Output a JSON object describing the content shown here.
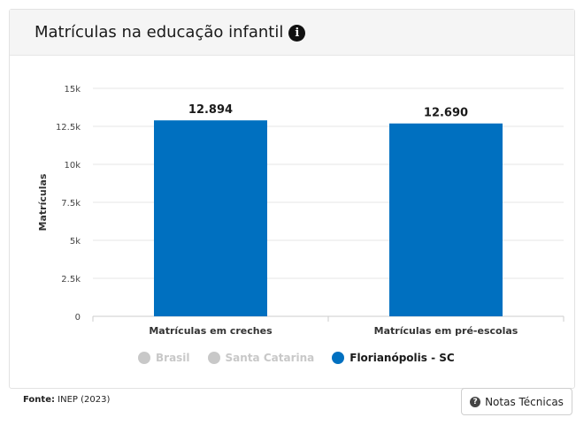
{
  "header": {
    "title": "Matrículas na educação infantil",
    "info_icon": "info-circle-icon"
  },
  "chart_data": {
    "type": "bar",
    "title": "Matrículas na educação infantil",
    "xlabel": "",
    "ylabel": "Matrículas",
    "categories": [
      "Matrículas em creches",
      "Matrículas em pré-escolas"
    ],
    "series": [
      {
        "name": "Florianópolis - SC",
        "values": [
          12894,
          12690
        ],
        "color": "#0070c0"
      }
    ],
    "data_labels": [
      "12.894",
      "12.690"
    ],
    "ylim": [
      0,
      15000
    ],
    "yticks": [
      0,
      2500,
      5000,
      7500,
      10000,
      12500,
      15000
    ],
    "ytick_labels": [
      "0",
      "2.5k",
      "5k",
      "7.5k",
      "10k",
      "12.5k",
      "15k"
    ],
    "grid": true,
    "legend_position": "bottom"
  },
  "legend": {
    "items": [
      {
        "label": "Brasil",
        "state": "inactive"
      },
      {
        "label": "Santa Catarina",
        "state": "inactive"
      },
      {
        "label": "Florianópolis - SC",
        "state": "active",
        "color": "#0070c0"
      }
    ]
  },
  "footer": {
    "source_label": "Fonte:",
    "source_value": "INEP (2023)",
    "notes_button": "Notas Técnicas",
    "notes_icon": "question-circle-icon"
  }
}
